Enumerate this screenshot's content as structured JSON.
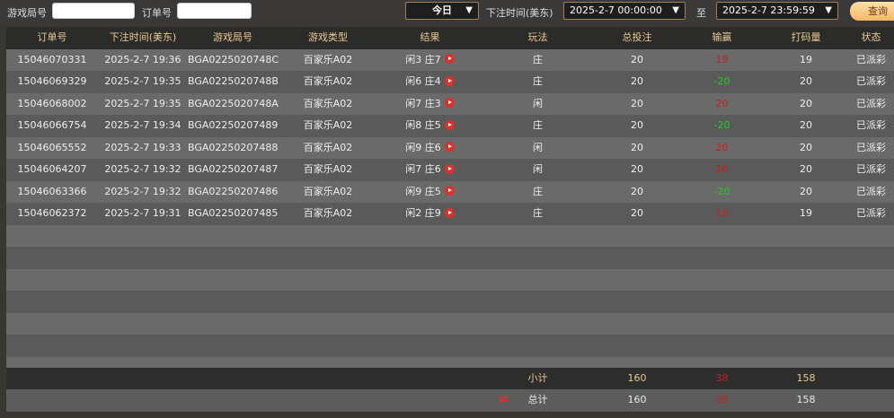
{
  "filters": {
    "round_label": "游戏局号",
    "round_value": "",
    "order_label": "订单号",
    "order_value": "",
    "period": "今日",
    "time_label": "下注时间(美东)",
    "start": "2025-2-7 00:00:00",
    "to_label": "至",
    "end": "2025-2-7 23:59:59",
    "query": "查询"
  },
  "table": {
    "headers": [
      "订单号",
      "下注时间(美东)",
      "游戏局号",
      "游戏类型",
      "结果",
      "玩法",
      "总投注",
      "输赢",
      "打码量",
      "状态"
    ],
    "rows": [
      [
        "15046070331",
        "2025-2-7 19:36",
        "BGA0225020748C",
        "百家乐A02",
        "闲3 庄7",
        "庄",
        "20",
        "19",
        "19",
        "已派彩"
      ],
      [
        "15046069329",
        "2025-2-7 19:35",
        "BGA0225020748B",
        "百家乐A02",
        "闲6 庄4",
        "庄",
        "20",
        "-20",
        "20",
        "已派彩"
      ],
      [
        "15046068002",
        "2025-2-7 19:35",
        "BGA0225020748A",
        "百家乐A02",
        "闲7 庄3",
        "闲",
        "20",
        "20",
        "20",
        "已派彩"
      ],
      [
        "15046066754",
        "2025-2-7 19:34",
        "BGA02250207489",
        "百家乐A02",
        "闲8 庄5",
        "庄",
        "20",
        "-20",
        "20",
        "已派彩"
      ],
      [
        "15046065552",
        "2025-2-7 19:33",
        "BGA02250207488",
        "百家乐A02",
        "闲9 庄6",
        "闲",
        "20",
        "20",
        "20",
        "已派彩"
      ],
      [
        "15046064207",
        "2025-2-7 19:32",
        "BGA02250207487",
        "百家乐A02",
        "闲7 庄6",
        "闲",
        "20",
        "20",
        "20",
        "已派彩"
      ],
      [
        "15046063366",
        "2025-2-7 19:32",
        "BGA02250207486",
        "百家乐A02",
        "闲9 庄5",
        "庄",
        "20",
        "-20",
        "20",
        "已派彩"
      ],
      [
        "15046062372",
        "2025-2-7 19:31",
        "BGA02250207485",
        "百家乐A02",
        "闲2 庄9",
        "庄",
        "20",
        "19",
        "19",
        "已派彩"
      ]
    ],
    "subtotal": {
      "label": "小计",
      "bet": "160",
      "win": "38",
      "code": "158"
    },
    "total": {
      "label": "总计",
      "bet": "160",
      "win": "38",
      "code": "158"
    }
  },
  "colors": {
    "win": "#c42020",
    "loss": "#22cc22",
    "accent": "#e8c890"
  }
}
